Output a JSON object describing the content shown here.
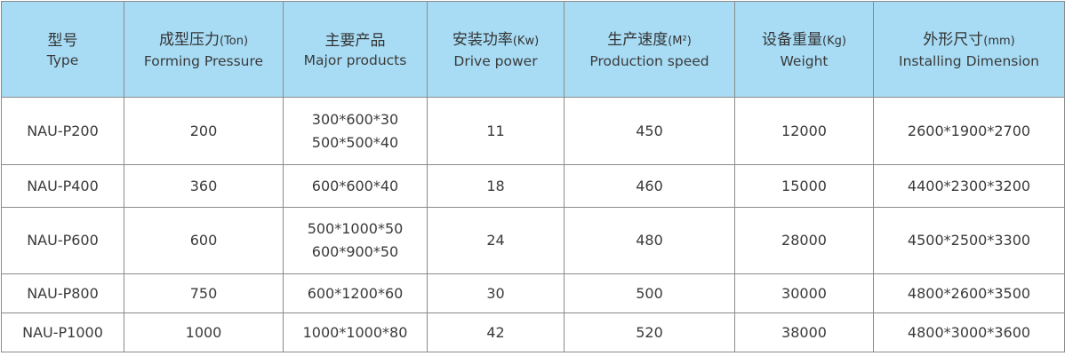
{
  "headers": [
    {
      "zh": "型号",
      "unit": "",
      "en": "Type"
    },
    {
      "zh": "成型压力",
      "unit": "(Ton)",
      "en": "Forming Pressure"
    },
    {
      "zh": "主要产品",
      "unit": "",
      "en": "Major products"
    },
    {
      "zh": "安装功率",
      "unit": "(Kw)",
      "en": "Drive power"
    },
    {
      "zh": "生产速度",
      "unit": "(M²)",
      "en": "Production speed"
    },
    {
      "zh": "设备重量",
      "unit": "(Kg)",
      "en": "Weight"
    },
    {
      "zh": "外形尺寸",
      "unit": "(mm)",
      "en": "Installing Dimension"
    }
  ],
  "rows": [
    {
      "type": "NAU-P200",
      "pressure": "200",
      "products": [
        "300*600*30",
        "500*500*40"
      ],
      "power": "11",
      "speed": "450",
      "weight": "12000",
      "dimension": "2600*1900*2700"
    },
    {
      "type": "NAU-P400",
      "pressure": "360",
      "products": [
        "600*600*40"
      ],
      "power": "18",
      "speed": "460",
      "weight": "15000",
      "dimension": "4400*2300*3200"
    },
    {
      "type": "NAU-P600",
      "pressure": "600",
      "products": [
        "500*1000*50",
        "600*900*50"
      ],
      "power": "24",
      "speed": "480",
      "weight": "28000",
      "dimension": "4500*2500*3300"
    },
    {
      "type": "NAU-P800",
      "pressure": "750",
      "products": [
        "600*1200*60"
      ],
      "power": "30",
      "speed": "500",
      "weight": "30000",
      "dimension": "4800*2600*3500"
    },
    {
      "type": "NAU-P1000",
      "pressure": "1000",
      "products": [
        "1000*1000*80"
      ],
      "power": "42",
      "speed": "520",
      "weight": "38000",
      "dimension": "4800*3000*3600"
    }
  ],
  "colors": {
    "header_bg": "#a8dcf5",
    "border": "#8a8a8a",
    "text": "#3a3a3a"
  }
}
